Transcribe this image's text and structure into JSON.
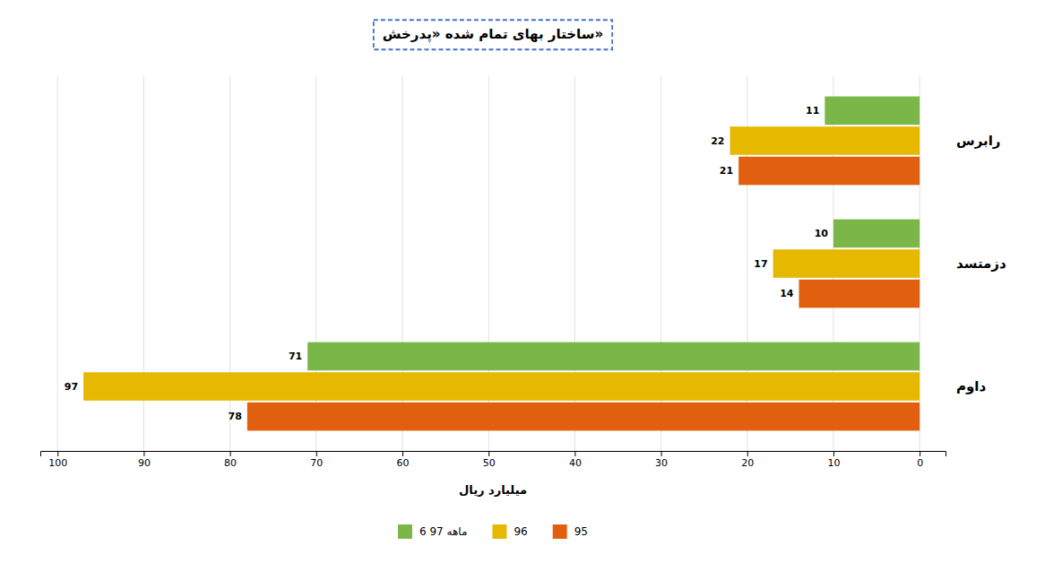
{
  "chart_data": {
    "type": "bar",
    "orientation": "horizontal",
    "title": "ساختار بهای تمام شده «پدرخش»",
    "xlabel": "میلیارد ریال",
    "categories": [
      "رابرس",
      "دزمتسد",
      "داوم"
    ],
    "series": [
      {
        "name": "6 ماهه 97",
        "color": "#7ab648",
        "values": [
          11,
          10,
          71
        ]
      },
      {
        "name": "96",
        "color": "#e6b800",
        "values": [
          22,
          17,
          97
        ]
      },
      {
        "name": "95",
        "color": "#e06010",
        "values": [
          21,
          14,
          78
        ]
      }
    ],
    "xlim": [
      102,
      -3
    ],
    "xticks": [
      0,
      10,
      20,
      30,
      40,
      50,
      60,
      70,
      80,
      90,
      100
    ],
    "grid": true,
    "legend": "bottom",
    "data_labels": true
  }
}
